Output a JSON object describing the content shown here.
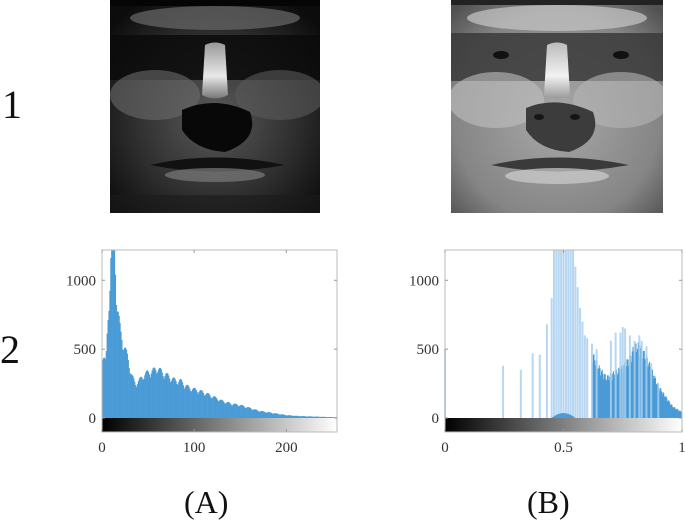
{
  "rows": [
    {
      "label": "1"
    },
    {
      "label": "2"
    }
  ],
  "panels": [
    {
      "label": "(A)"
    },
    {
      "label": "(B)"
    }
  ],
  "images": [
    {
      "name": "original-face",
      "description": "dark low-contrast grayscale face"
    },
    {
      "name": "equalized-face",
      "description": "brighter contrast-enhanced grayscale face"
    }
  ],
  "colors": {
    "bar": "#4a9bd6",
    "bar_light": "#a9cfee",
    "axis": "#bbbbbb",
    "text": "#333333"
  },
  "chart_data": [
    {
      "type": "bar",
      "title": "",
      "xlabel": "",
      "ylabel": "",
      "xlim": [
        0,
        255
      ],
      "ylim": [
        0,
        1220
      ],
      "xticks": [
        0,
        100,
        200
      ],
      "xtick_labels": [
        "0",
        "100",
        "200"
      ],
      "yticks": [
        0,
        500,
        1000
      ],
      "ytick_labels": [
        "0",
        "500",
        "1000"
      ],
      "colorbar": "grayscale 0-255",
      "grid": false,
      "x": [
        0,
        4,
        8,
        10,
        12,
        14,
        16,
        20,
        24,
        28,
        32,
        36,
        40,
        45,
        50,
        55,
        60,
        65,
        70,
        75,
        80,
        85,
        90,
        95,
        100,
        110,
        120,
        130,
        140,
        150,
        160,
        170,
        180,
        190,
        200,
        210,
        220,
        230,
        240,
        250,
        255
      ],
      "values": [
        480,
        380,
        900,
        1220,
        1220,
        1150,
        800,
        600,
        500,
        420,
        300,
        240,
        260,
        300,
        320,
        330,
        350,
        320,
        300,
        280,
        260,
        260,
        230,
        210,
        200,
        180,
        150,
        120,
        100,
        90,
        70,
        50,
        40,
        30,
        20,
        15,
        12,
        10,
        8,
        6,
        5
      ]
    },
    {
      "type": "bar",
      "title": "",
      "xlabel": "",
      "ylabel": "",
      "xlim": [
        0,
        1
      ],
      "ylim": [
        0,
        1220
      ],
      "xticks": [
        0,
        0.5,
        1
      ],
      "xtick_labels": [
        "0",
        "0.5",
        "1"
      ],
      "yticks": [
        0,
        500,
        1000
      ],
      "ytick_labels": [
        "0",
        "500",
        "1000"
      ],
      "colorbar": "grayscale 0-1",
      "grid": false,
      "sparse_bars": {
        "x": [
          0.0,
          0.245,
          0.32,
          0.37,
          0.4,
          0.43,
          0.45,
          0.46,
          0.47,
          0.48,
          0.49,
          0.5,
          0.51,
          0.52,
          0.53,
          0.54,
          0.55,
          0.56,
          0.57,
          0.58,
          0.59,
          0.6,
          0.62,
          0.64,
          0.7,
          0.72,
          0.74,
          0.75,
          0.76,
          0.78,
          0.8,
          0.82,
          0.83,
          0.85,
          0.87,
          0.9
        ],
        "values": [
          500,
          380,
          350,
          470,
          460,
          680,
          870,
          1220,
          1220,
          1220,
          1220,
          1220,
          1220,
          1220,
          1220,
          1220,
          1100,
          950,
          800,
          700,
          600,
          580,
          540,
          500,
          560,
          620,
          620,
          660,
          650,
          600,
          560,
          600,
          560,
          520,
          400,
          250
        ]
      },
      "dense_region": {
        "x": [
          0.62,
          0.65,
          0.68,
          0.7,
          0.72,
          0.75,
          0.78,
          0.8,
          0.82,
          0.85,
          0.88,
          0.9,
          0.93,
          0.96,
          1.0
        ],
        "values": [
          450,
          350,
          280,
          300,
          320,
          350,
          420,
          500,
          500,
          420,
          300,
          220,
          150,
          80,
          40
        ]
      }
    }
  ]
}
